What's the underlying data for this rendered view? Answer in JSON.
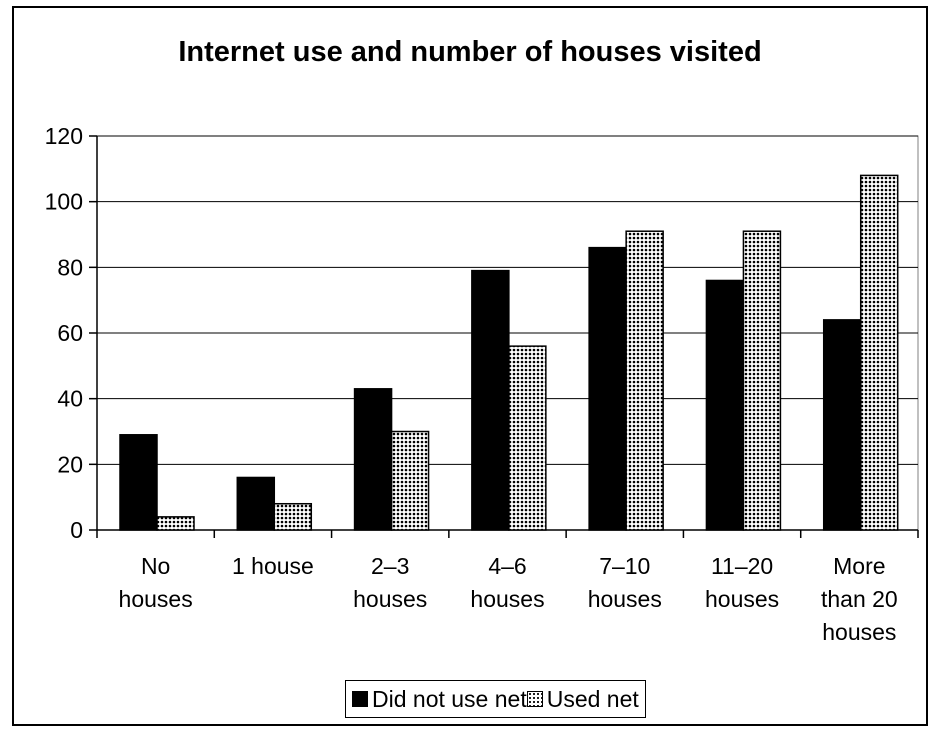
{
  "chart_data": {
    "type": "bar",
    "title": "Internet use and number of houses visited",
    "categories": [
      [
        "No",
        "houses"
      ],
      [
        "1 house"
      ],
      [
        "2–3",
        "houses"
      ],
      [
        "4–6",
        "houses"
      ],
      [
        "7–10",
        "houses"
      ],
      [
        "11–20",
        "houses"
      ],
      [
        "More",
        "than 20",
        "houses"
      ]
    ],
    "series": [
      {
        "name": "Did not use net",
        "values": [
          29,
          16,
          43,
          79,
          86,
          76,
          64
        ],
        "color": "#000000",
        "fill": "solid"
      },
      {
        "name": "Used net",
        "values": [
          4,
          8,
          30,
          56,
          91,
          91,
          108
        ],
        "color": "#000000",
        "fill": "dotted"
      }
    ],
    "ylim": [
      0,
      120
    ],
    "yticks": [
      0,
      20,
      40,
      60,
      80,
      100,
      120
    ],
    "grid": true,
    "legend_position": "bottom",
    "xlabel": "",
    "ylabel": ""
  }
}
